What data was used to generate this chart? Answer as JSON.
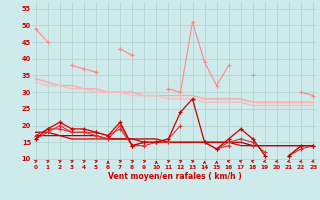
{
  "x": [
    0,
    1,
    2,
    3,
    4,
    5,
    6,
    7,
    8,
    9,
    10,
    11,
    12,
    13,
    14,
    15,
    16,
    17,
    18,
    19,
    20,
    21,
    22,
    23
  ],
  "rafales_jagged": [
    49,
    45,
    null,
    38,
    37,
    36,
    null,
    43,
    41,
    null,
    null,
    31,
    30,
    51,
    39,
    32,
    38,
    null,
    35,
    null,
    null,
    null,
    30,
    29
  ],
  "rafales_smooth1": [
    34,
    33,
    32,
    32,
    31,
    31,
    30,
    30,
    30,
    29,
    29,
    29,
    29,
    29,
    28,
    28,
    28,
    28,
    27,
    27,
    27,
    27,
    27,
    27
  ],
  "rafales_smooth2": [
    33,
    32,
    32,
    31,
    31,
    30,
    30,
    30,
    29,
    29,
    29,
    28,
    28,
    28,
    27,
    27,
    27,
    27,
    26,
    26,
    26,
    26,
    26,
    26
  ],
  "moyen_jagged": [
    16,
    19,
    21,
    19,
    19,
    18,
    17,
    21,
    14,
    15,
    15,
    16,
    24,
    28,
    15,
    13,
    16,
    19,
    16,
    11,
    null,
    11,
    14,
    14
  ],
  "moyen_smooth1": [
    17,
    17,
    17,
    16,
    16,
    16,
    16,
    16,
    16,
    15,
    15,
    15,
    15,
    15,
    15,
    15,
    15,
    14,
    14,
    14,
    14,
    14,
    14,
    14
  ],
  "moyen_smooth2": [
    18,
    18,
    17,
    17,
    17,
    17,
    16,
    16,
    16,
    16,
    16,
    15,
    15,
    15,
    15,
    15,
    15,
    15,
    14,
    14,
    14,
    14,
    14,
    14
  ],
  "moyen_extra1": [
    17,
    19,
    19,
    18,
    18,
    18,
    17,
    19,
    14,
    15,
    15,
    16,
    20,
    null,
    15,
    13,
    15,
    16,
    15,
    12,
    null,
    11,
    14,
    14
  ],
  "moyen_extra2": [
    16,
    18,
    20,
    18,
    18,
    17,
    16,
    20,
    14,
    14,
    15,
    15,
    null,
    null,
    null,
    13,
    14,
    null,
    14,
    null,
    null,
    11,
    13,
    14
  ],
  "bg_color": "#ceeaea",
  "grid_color": "#b0cfcf",
  "color_rafales_jagged": "#ff8888",
  "color_rafales_smooth1": "#ffaaaa",
  "color_rafales_smooth2": "#ffbbbb",
  "color_moyen_dark": "#cc0000",
  "color_moyen_medium": "#dd3333",
  "color_moyen_smooth": "#aa0000",
  "xlabel": "Vent moyen/en rafales ( km/h )",
  "yticks": [
    10,
    15,
    20,
    25,
    30,
    35,
    40,
    45,
    50,
    55
  ],
  "ylim": [
    8.5,
    57
  ],
  "xlim": [
    -0.3,
    23.3
  ],
  "arrow_angles": [
    45,
    45,
    45,
    45,
    45,
    45,
    0,
    45,
    45,
    45,
    0,
    45,
    45,
    45,
    0,
    0,
    -45,
    -45,
    -45,
    -135,
    -135,
    -135,
    -135,
    -135
  ]
}
